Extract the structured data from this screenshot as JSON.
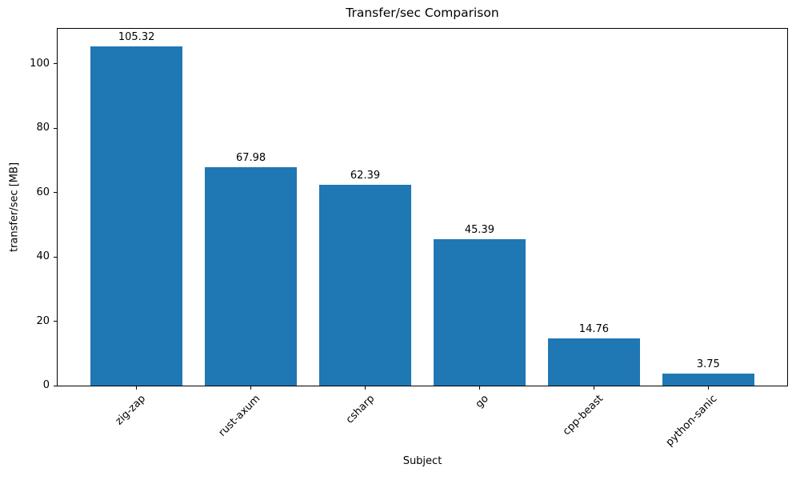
{
  "figure": {
    "background": "#ffffff"
  },
  "chart_data": {
    "type": "bar",
    "title": "Transfer/sec Comparison",
    "xlabel": "Subject",
    "ylabel": "transfer/sec [MB]",
    "categories": [
      "zig-zap",
      "rust-axum",
      "csharp",
      "go",
      "cpp-beast",
      "python-sanic"
    ],
    "values": [
      105.32,
      67.98,
      62.39,
      45.39,
      14.76,
      3.75
    ],
    "value_labels": [
      "105.32",
      "67.98",
      "62.39",
      "45.39",
      "14.76",
      "3.75"
    ],
    "yticks": [
      0,
      20,
      40,
      60,
      80,
      100
    ],
    "ytick_labels": [
      "0",
      "20",
      "40",
      "60",
      "80",
      "100"
    ],
    "ylim": [
      0,
      110.9
    ],
    "xlim": [
      -0.69,
      5.69
    ],
    "bar_width": 0.8,
    "bar_color": "#1f77b4",
    "axis_color": "#000000",
    "text_color": "#000000",
    "grid": false,
    "legend": null,
    "xtick_rotation_deg": 45
  }
}
